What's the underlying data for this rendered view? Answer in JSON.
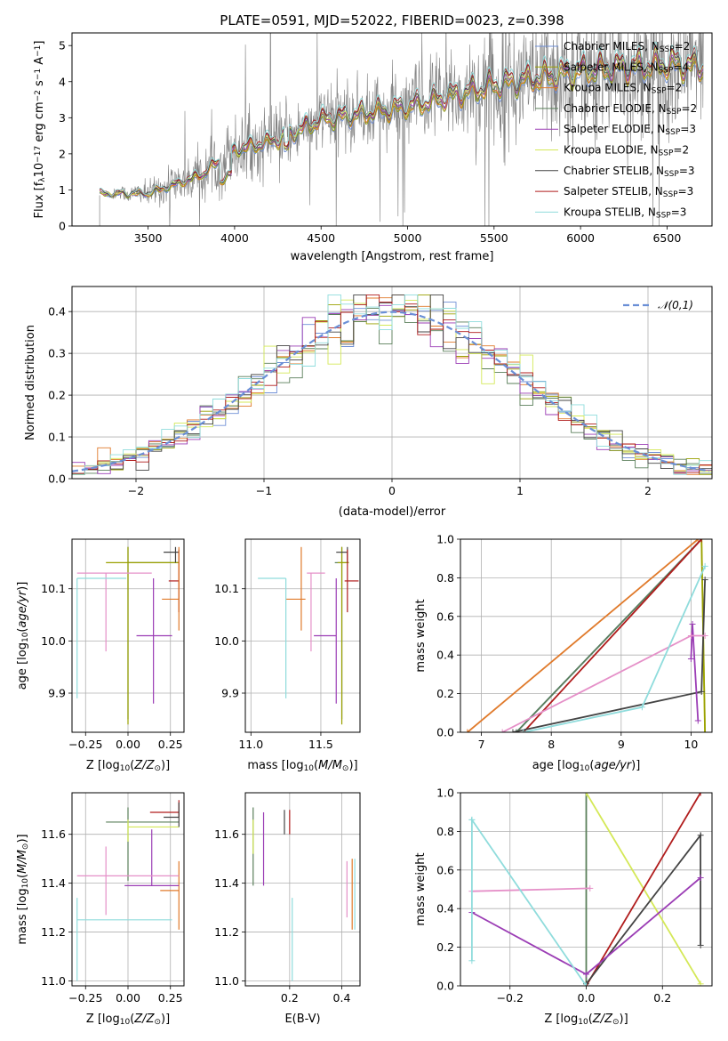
{
  "chart_data": [
    {
      "id": "spectrum",
      "type": "line",
      "title": "PLATE=0591, MJD=52022, FIBERID=0023, z=0.398",
      "xlabel": "wavelength [Angstrom, rest frame]",
      "ylabel": "Flux [f_λ 10^-17 erg cm^-2 s^-1 A^-1]",
      "xlim": [
        3060,
        6760
      ],
      "ylim": [
        0,
        5.35
      ],
      "xticks": [
        3500,
        4000,
        4500,
        5000,
        5500,
        6000,
        6500
      ],
      "yticks": [
        0,
        1,
        2,
        3,
        4,
        5
      ],
      "grid": false,
      "legend_position": "upper-right",
      "data_series": {
        "name": "",
        "color": "#808080",
        "wave_range": [
          3220,
          6710
        ],
        "continuum_anchors": [
          [
            3220,
            0.9
          ],
          [
            3500,
            0.9
          ],
          [
            3800,
            1.4
          ],
          [
            4000,
            2.1
          ],
          [
            4250,
            2.4
          ],
          [
            4500,
            2.95
          ],
          [
            5000,
            3.3
          ],
          [
            5500,
            3.9
          ],
          [
            6000,
            4.3
          ],
          [
            6500,
            4.5
          ],
          [
            6710,
            4.4
          ]
        ],
        "noise_anchors": [
          [
            3220,
            0.05
          ],
          [
            3500,
            0.3
          ],
          [
            4000,
            0.8
          ],
          [
            4500,
            0.7
          ],
          [
            5000,
            0.9
          ],
          [
            5500,
            1.3
          ],
          [
            6000,
            1.6
          ],
          [
            6710,
            1.8
          ]
        ]
      },
      "models": [
        {
          "name": "Chabrier MILES, N_SSP=2",
          "color": "#6f8fd6"
        },
        {
          "name": "Salpeter MILES, N_SSP=4",
          "color": "#9aa000"
        },
        {
          "name": "Kroupa MILES, N_SSP=2",
          "color": "#e07a2b"
        },
        {
          "name": "Chabrier ELODIE, N_SSP=2",
          "color": "#5a7f5a"
        },
        {
          "name": "Salpeter ELODIE, N_SSP=3",
          "color": "#9b3db5"
        },
        {
          "name": "Kroupa ELODIE, N_SSP=2",
          "color": "#d4e857"
        },
        {
          "name": "Chabrier STELIB, N_SSP=3",
          "color": "#444444"
        },
        {
          "name": "Salpeter STELIB, N_SSP=3",
          "color": "#b01c1c"
        },
        {
          "name": "Kroupa STELIB, N_SSP=3",
          "color": "#8fdcdc"
        }
      ]
    },
    {
      "id": "residuals",
      "type": "histogram",
      "xlabel": "(data-model)/error",
      "ylabel": "Normed distribution",
      "xlim": [
        -2.5,
        2.5
      ],
      "ylim": [
        0,
        0.46
      ],
      "xticks": [
        -2,
        -1,
        0,
        1,
        2
      ],
      "yticks": [
        0.0,
        0.1,
        0.2,
        0.3,
        0.4
      ],
      "grid": true,
      "legend_position": "upper-right",
      "reference": {
        "name": "𝒩(0,1)",
        "color": "#6a8fd6"
      }
    },
    {
      "id": "age-vs-Z",
      "type": "errorbar",
      "xlabel": "Z [log10(Z/Z☉)]",
      "ylabel": "age  [log10(age/yr)]",
      "xlim": [
        -0.33,
        0.33
      ],
      "ylim": [
        9.825,
        10.195
      ],
      "xticks": [
        -0.25,
        0.0,
        0.25
      ],
      "yticks": [
        9.9,
        10.0,
        10.1
      ],
      "grid": true,
      "points": [
        {
          "x": 0.0,
          "y": 10.15,
          "xerr": [
            0.0,
            0.3
          ],
          "yerr": [
            0.3,
            0.03
          ],
          "color": "#5a7f5a"
        },
        {
          "x": 0.0,
          "y": 10.15,
          "xerr": [
            0.13,
            0.3
          ],
          "yerr": [
            0.31,
            0.03
          ],
          "color": "#9aa000"
        },
        {
          "x": 0.28,
          "y": 10.17,
          "xerr": [
            0.07,
            0.02
          ],
          "yerr": [
            0.02,
            0.01
          ],
          "color": "#444444"
        },
        {
          "x": 0.3,
          "y": 10.115,
          "xerr": [
            0.06,
            0.0
          ],
          "yerr": [
            0.06,
            0.06
          ],
          "color": "#b01c1c"
        },
        {
          "x": 0.3,
          "y": 10.08,
          "xerr": [
            0.1,
            0.0
          ],
          "yerr": [
            0.06,
            0.1
          ],
          "color": "#e07a2b"
        },
        {
          "x": 0.15,
          "y": 10.01,
          "xerr": [
            0.1,
            0.11
          ],
          "yerr": [
            0.13,
            0.11
          ],
          "color": "#9b3db5"
        },
        {
          "x": -0.13,
          "y": 10.13,
          "xerr": [
            0.17,
            0.27
          ],
          "yerr": [
            0.15,
            0.0
          ],
          "color": "#e590c8"
        },
        {
          "x": -0.3,
          "y": 10.12,
          "xerr": [
            0.0,
            0.29
          ],
          "yerr": [
            0.23,
            0.0
          ],
          "color": "#8fdcdc"
        }
      ]
    },
    {
      "id": "age-vs-mass",
      "type": "errorbar",
      "xlabel": "mass [log10(M/M☉)]",
      "ylabel": "",
      "xlim": [
        10.96,
        11.78
      ],
      "ylim": [
        9.825,
        10.195
      ],
      "xticks": [
        11.0,
        11.5
      ],
      "yticks": [
        9.9,
        10.0,
        10.1
      ],
      "grid": true,
      "points": [
        {
          "x": 11.65,
          "y": 10.15,
          "xerr": [
            0.05,
            0.05
          ],
          "yerr": [
            0.3,
            0.03
          ],
          "color": "#5a7f5a"
        },
        {
          "x": 11.65,
          "y": 10.15,
          "xerr": [
            0.03,
            0.05
          ],
          "yerr": [
            0.31,
            0.03
          ],
          "color": "#9aa000"
        },
        {
          "x": 11.69,
          "y": 10.17,
          "xerr": [
            0.08,
            0.0
          ],
          "yerr": [
            0.02,
            0.01
          ],
          "color": "#444444"
        },
        {
          "x": 11.69,
          "y": 10.115,
          "xerr": [
            0.02,
            0.08
          ],
          "yerr": [
            0.06,
            0.06
          ],
          "color": "#b01c1c"
        },
        {
          "x": 11.36,
          "y": 10.08,
          "xerr": [
            0.11,
            0.03
          ],
          "yerr": [
            0.06,
            0.1
          ],
          "color": "#e07a2b"
        },
        {
          "x": 11.61,
          "y": 10.01,
          "xerr": [
            0.16,
            0.0
          ],
          "yerr": [
            0.13,
            0.11
          ],
          "color": "#9b3db5"
        },
        {
          "x": 11.43,
          "y": 10.13,
          "xerr": [
            0.03,
            0.1
          ],
          "yerr": [
            0.15,
            0.0
          ],
          "color": "#e590c8"
        },
        {
          "x": 11.25,
          "y": 10.12,
          "xerr": [
            0.2,
            0.0
          ],
          "yerr": [
            0.23,
            0.0
          ],
          "color": "#8fdcdc"
        }
      ]
    },
    {
      "id": "weight-vs-age",
      "type": "line",
      "xlabel": "age  [log10(age/yr)]",
      "ylabel": "mass weight",
      "xlim": [
        6.7,
        10.3
      ],
      "ylim": [
        0.0,
        1.0
      ],
      "xticks": [
        7,
        8,
        9,
        10
      ],
      "yticks": [
        0.0,
        0.2,
        0.4,
        0.6,
        0.8,
        1.0
      ],
      "grid": true,
      "lines": [
        {
          "color": "#6f8fd6",
          "points": [
            [
              7.5,
              0.0
            ],
            [
              10.15,
              1.0
            ]
          ]
        },
        {
          "color": "#5a7f5a",
          "points": [
            [
              7.5,
              0.0
            ],
            [
              10.15,
              1.0
            ]
          ]
        },
        {
          "color": "#d4e857",
          "points": [
            [
              10.15,
              1.0
            ],
            [
              10.2,
              0.0
            ]
          ]
        },
        {
          "color": "#9aa000",
          "points": [
            [
              10.15,
              1.0
            ],
            [
              10.2,
              0.0
            ]
          ]
        },
        {
          "color": "#e07a2b",
          "points": [
            [
              6.8,
              0.0
            ],
            [
              10.1,
              1.0
            ]
          ]
        },
        {
          "color": "#b01c1c",
          "points": [
            [
              7.6,
              0.0
            ],
            [
              10.15,
              1.0
            ]
          ]
        },
        {
          "color": "#444444",
          "points": [
            [
              7.45,
              0.0
            ],
            [
              10.15,
              0.21
            ],
            [
              10.2,
              0.79
            ]
          ]
        },
        {
          "color": "#9b3db5",
          "points": [
            [
              10.0,
              0.38
            ],
            [
              10.02,
              0.56
            ],
            [
              10.1,
              0.06
            ]
          ]
        },
        {
          "color": "#e590c8",
          "points": [
            [
              7.3,
              0.0
            ],
            [
              10.0,
              0.5
            ],
            [
              10.2,
              0.5
            ]
          ]
        },
        {
          "color": "#8fdcdc",
          "points": [
            [
              7.6,
              0.0
            ],
            [
              9.3,
              0.13
            ],
            [
              10.2,
              0.86
            ]
          ]
        }
      ]
    },
    {
      "id": "mass-vs-Z",
      "type": "errorbar",
      "xlabel": "Z [log10(Z/Z☉)]",
      "ylabel": "mass [log10(M/M☉)]",
      "xlim": [
        -0.33,
        0.33
      ],
      "ylim": [
        10.98,
        11.77
      ],
      "xticks": [
        -0.25,
        0.0,
        0.25
      ],
      "yticks": [
        11.0,
        11.2,
        11.4,
        11.6
      ],
      "grid": true,
      "points": [
        {
          "x": 0.0,
          "y": 11.65,
          "xerr": [
            0.13,
            0.3
          ],
          "yerr": [
            0.24,
            0.06
          ],
          "color": "#5a7f5a"
        },
        {
          "x": 0.0,
          "y": 11.63,
          "xerr": [
            0.0,
            0.3
          ],
          "yerr": [
            0.06,
            0.03
          ],
          "color": "#d4e857"
        },
        {
          "x": 0.3,
          "y": 11.69,
          "xerr": [
            0.17,
            0.0
          ],
          "yerr": [
            0.02,
            0.05
          ],
          "color": "#b01c1c"
        },
        {
          "x": 0.3,
          "y": 11.67,
          "xerr": [
            0.09,
            0.0
          ],
          "yerr": [
            0.04,
            0.06
          ],
          "color": "#444444"
        },
        {
          "x": 0.3,
          "y": 11.37,
          "xerr": [
            0.11,
            0.0
          ],
          "yerr": [
            0.16,
            0.12
          ],
          "color": "#e07a2b"
        },
        {
          "x": 0.14,
          "y": 11.39,
          "xerr": [
            0.16,
            0.16
          ],
          "yerr": [
            0.0,
            0.23
          ],
          "color": "#9b3db5"
        },
        {
          "x": -0.13,
          "y": 11.43,
          "xerr": [
            0.17,
            0.43
          ],
          "yerr": [
            0.16,
            0.12
          ],
          "color": "#e590c8"
        },
        {
          "x": -0.3,
          "y": 11.25,
          "xerr": [
            0.0,
            0.56
          ],
          "yerr": [
            0.25,
            0.09
          ],
          "color": "#8fdcdc"
        }
      ]
    },
    {
      "id": "mass-vs-ebv",
      "type": "errorbar",
      "xlabel": "E(B-V)",
      "ylabel": "",
      "xlim": [
        0.03,
        0.47
      ],
      "ylim": [
        10.98,
        11.77
      ],
      "xticks": [
        0.2,
        0.4
      ],
      "yticks": [
        11.0,
        11.2,
        11.4,
        11.6
      ],
      "grid": true,
      "points": [
        {
          "x": 0.06,
          "y": 11.55,
          "xerr": [
            0.0,
            0.0
          ],
          "yerr": [
            0.16,
            0.16
          ],
          "color": "#5a7f5a"
        },
        {
          "x": 0.06,
          "y": 11.6,
          "xerr": [
            0.0,
            0.0
          ],
          "yerr": [
            0.08,
            0.06
          ],
          "color": "#d4e857"
        },
        {
          "x": 0.1,
          "y": 11.55,
          "xerr": [
            0.0,
            0.0
          ],
          "yerr": [
            0.16,
            0.14
          ],
          "color": "#9b3db5"
        },
        {
          "x": 0.18,
          "y": 11.66,
          "xerr": [
            0.0,
            0.0
          ],
          "yerr": [
            0.06,
            0.04
          ],
          "color": "#444444"
        },
        {
          "x": 0.2,
          "y": 11.65,
          "xerr": [
            0.0,
            0.0
          ],
          "yerr": [
            0.05,
            0.05
          ],
          "color": "#b01c1c"
        },
        {
          "x": 0.21,
          "y": 11.17,
          "xerr": [
            0.0,
            0.0
          ],
          "yerr": [
            0.17,
            0.17
          ],
          "color": "#8fdcdc"
        },
        {
          "x": 0.42,
          "y": 11.38,
          "xerr": [
            0.0,
            0.0
          ],
          "yerr": [
            0.12,
            0.11
          ],
          "color": "#e590c8"
        },
        {
          "x": 0.44,
          "y": 11.35,
          "xerr": [
            0.0,
            0.0
          ],
          "yerr": [
            0.14,
            0.15
          ],
          "color": "#e07a2b"
        },
        {
          "x": 0.45,
          "y": 11.36,
          "xerr": [
            0.0,
            0.0
          ],
          "yerr": [
            0.15,
            0.14
          ],
          "color": "#8fdcdc"
        }
      ]
    },
    {
      "id": "weight-vs-Z",
      "type": "line",
      "xlabel": "Z [log10(Z/Z☉)]",
      "ylabel": "mass weight",
      "xlim": [
        -0.33,
        0.33
      ],
      "ylim": [
        0.0,
        1.0
      ],
      "xticks": [
        -0.2,
        0.0,
        0.2
      ],
      "yticks": [
        0.0,
        0.2,
        0.4,
        0.6,
        0.8,
        1.0
      ],
      "grid": true,
      "lines": [
        {
          "color": "#5a7f5a",
          "points": [
            [
              0.0,
              0.0
            ],
            [
              0.0,
              1.0
            ]
          ]
        },
        {
          "color": "#d4e857",
          "points": [
            [
              0.0,
              1.0
            ],
            [
              0.3,
              0.01
            ]
          ]
        },
        {
          "color": "#b01c1c",
          "points": [
            [
              0.0,
              0.0
            ],
            [
              0.3,
              1.0
            ]
          ]
        },
        {
          "color": "#444444",
          "points": [
            [
              0.0,
              0.01
            ],
            [
              0.3,
              0.78
            ],
            [
              0.3,
              0.21
            ]
          ]
        },
        {
          "color": "#9b3db5",
          "points": [
            [
              -0.3,
              0.38
            ],
            [
              0.0,
              0.06
            ],
            [
              0.3,
              0.56
            ]
          ]
        },
        {
          "color": "#e590c8",
          "points": [
            [
              -0.3,
              0.49
            ],
            [
              0.01,
              0.505
            ]
          ]
        },
        {
          "color": "#8fdcdc",
          "points": [
            [
              -0.3,
              0.86
            ],
            [
              -0.3,
              0.13
            ],
            [
              -0.3,
              0.86
            ],
            [
              0.0,
              0.0
            ]
          ]
        }
      ]
    }
  ]
}
